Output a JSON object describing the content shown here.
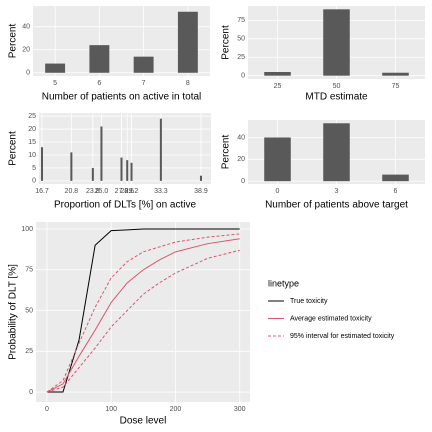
{
  "chart_data": [
    {
      "type": "bar",
      "categories": [
        "5",
        "6",
        "7",
        "8"
      ],
      "values": [
        8,
        24,
        14,
        53
      ],
      "color": "#595959",
      "ylim": [
        -2.8,
        58
      ],
      "yticks": [
        0,
        20,
        40
      ],
      "xlabel": "Number of patients on active in total",
      "ylabel": "Percent",
      "grid": true
    },
    {
      "type": "bar",
      "categories": [
        "25",
        "50",
        "75"
      ],
      "values": [
        5,
        90,
        4
      ],
      "color": "#595959",
      "ylim": [
        -4.5,
        94.5
      ],
      "yticks": [
        0,
        25,
        50,
        75
      ],
      "xlabel": "MTD estimate",
      "ylabel": "Percent",
      "grid": true
    },
    {
      "type": "bar",
      "x": [
        16.7,
        20.8,
        23.8,
        25.0,
        27.8,
        28.6,
        29.2,
        33.3,
        38.9
      ],
      "values": [
        13,
        11,
        5,
        21,
        9,
        8,
        7,
        24,
        2
      ],
      "color": "#595959",
      "xlim": [
        16.28,
        40.3
      ],
      "xticks": [
        16.7,
        20.8,
        23.8,
        {
          "value": 25.0,
          "label": "25.0"
        },
        27.8,
        28.6,
        29.2,
        33.3,
        38.9
      ],
      "ylim": [
        -1.2,
        26.2
      ],
      "yticks": [
        0,
        5,
        10,
        15,
        20,
        25
      ],
      "xlabel": "Proportion of DLTs [%] on active",
      "ylabel": "Percent",
      "grid": true
    },
    {
      "type": "bar",
      "categories": [
        "0",
        "3",
        "6"
      ],
      "values": [
        40,
        53,
        6
      ],
      "color": "#595959",
      "ylim": [
        -2.6,
        56
      ],
      "yticks": [
        0,
        20,
        40
      ],
      "xlabel": "Number of patients above target",
      "ylabel": "Percent",
      "grid": true
    },
    {
      "type": "line",
      "x": [
        0,
        25,
        50,
        75,
        100,
        125,
        150,
        175,
        200,
        250,
        300
      ],
      "series": [
        {
          "name": "True toxicity",
          "color": "#000000",
          "dash": false,
          "values": [
            0,
            0,
            32,
            90,
            99,
            99.5,
            100,
            100,
            100,
            100,
            100
          ]
        },
        {
          "name": "Average estimated toxicity",
          "color": "#df536b",
          "dash": false,
          "values": [
            0,
            5,
            22,
            38,
            55,
            67,
            75,
            81,
            86,
            91,
            94
          ]
        },
        {
          "name": "95% interval for estimated toxicity",
          "color": "#df536b",
          "dash": true,
          "values": [
            0,
            7,
            30,
            52,
            70,
            80,
            86,
            89,
            92,
            95,
            97
          ]
        },
        {
          "name": "95% interval for estimated toxicity",
          "color": "#df536b",
          "dash": true,
          "values": [
            0,
            3,
            15,
            27,
            40,
            50,
            60,
            67,
            73,
            82,
            87
          ]
        }
      ],
      "xlim": [
        -17,
        316
      ],
      "xticks": [
        0,
        100,
        200,
        300
      ],
      "ylim": [
        -6.1,
        104.3
      ],
      "yticks": [
        0,
        25,
        50,
        75,
        100
      ],
      "xlabel": "Dose level",
      "ylabel": "Probability of DLT [%]",
      "legend_title": "linetype",
      "grid": true
    }
  ]
}
